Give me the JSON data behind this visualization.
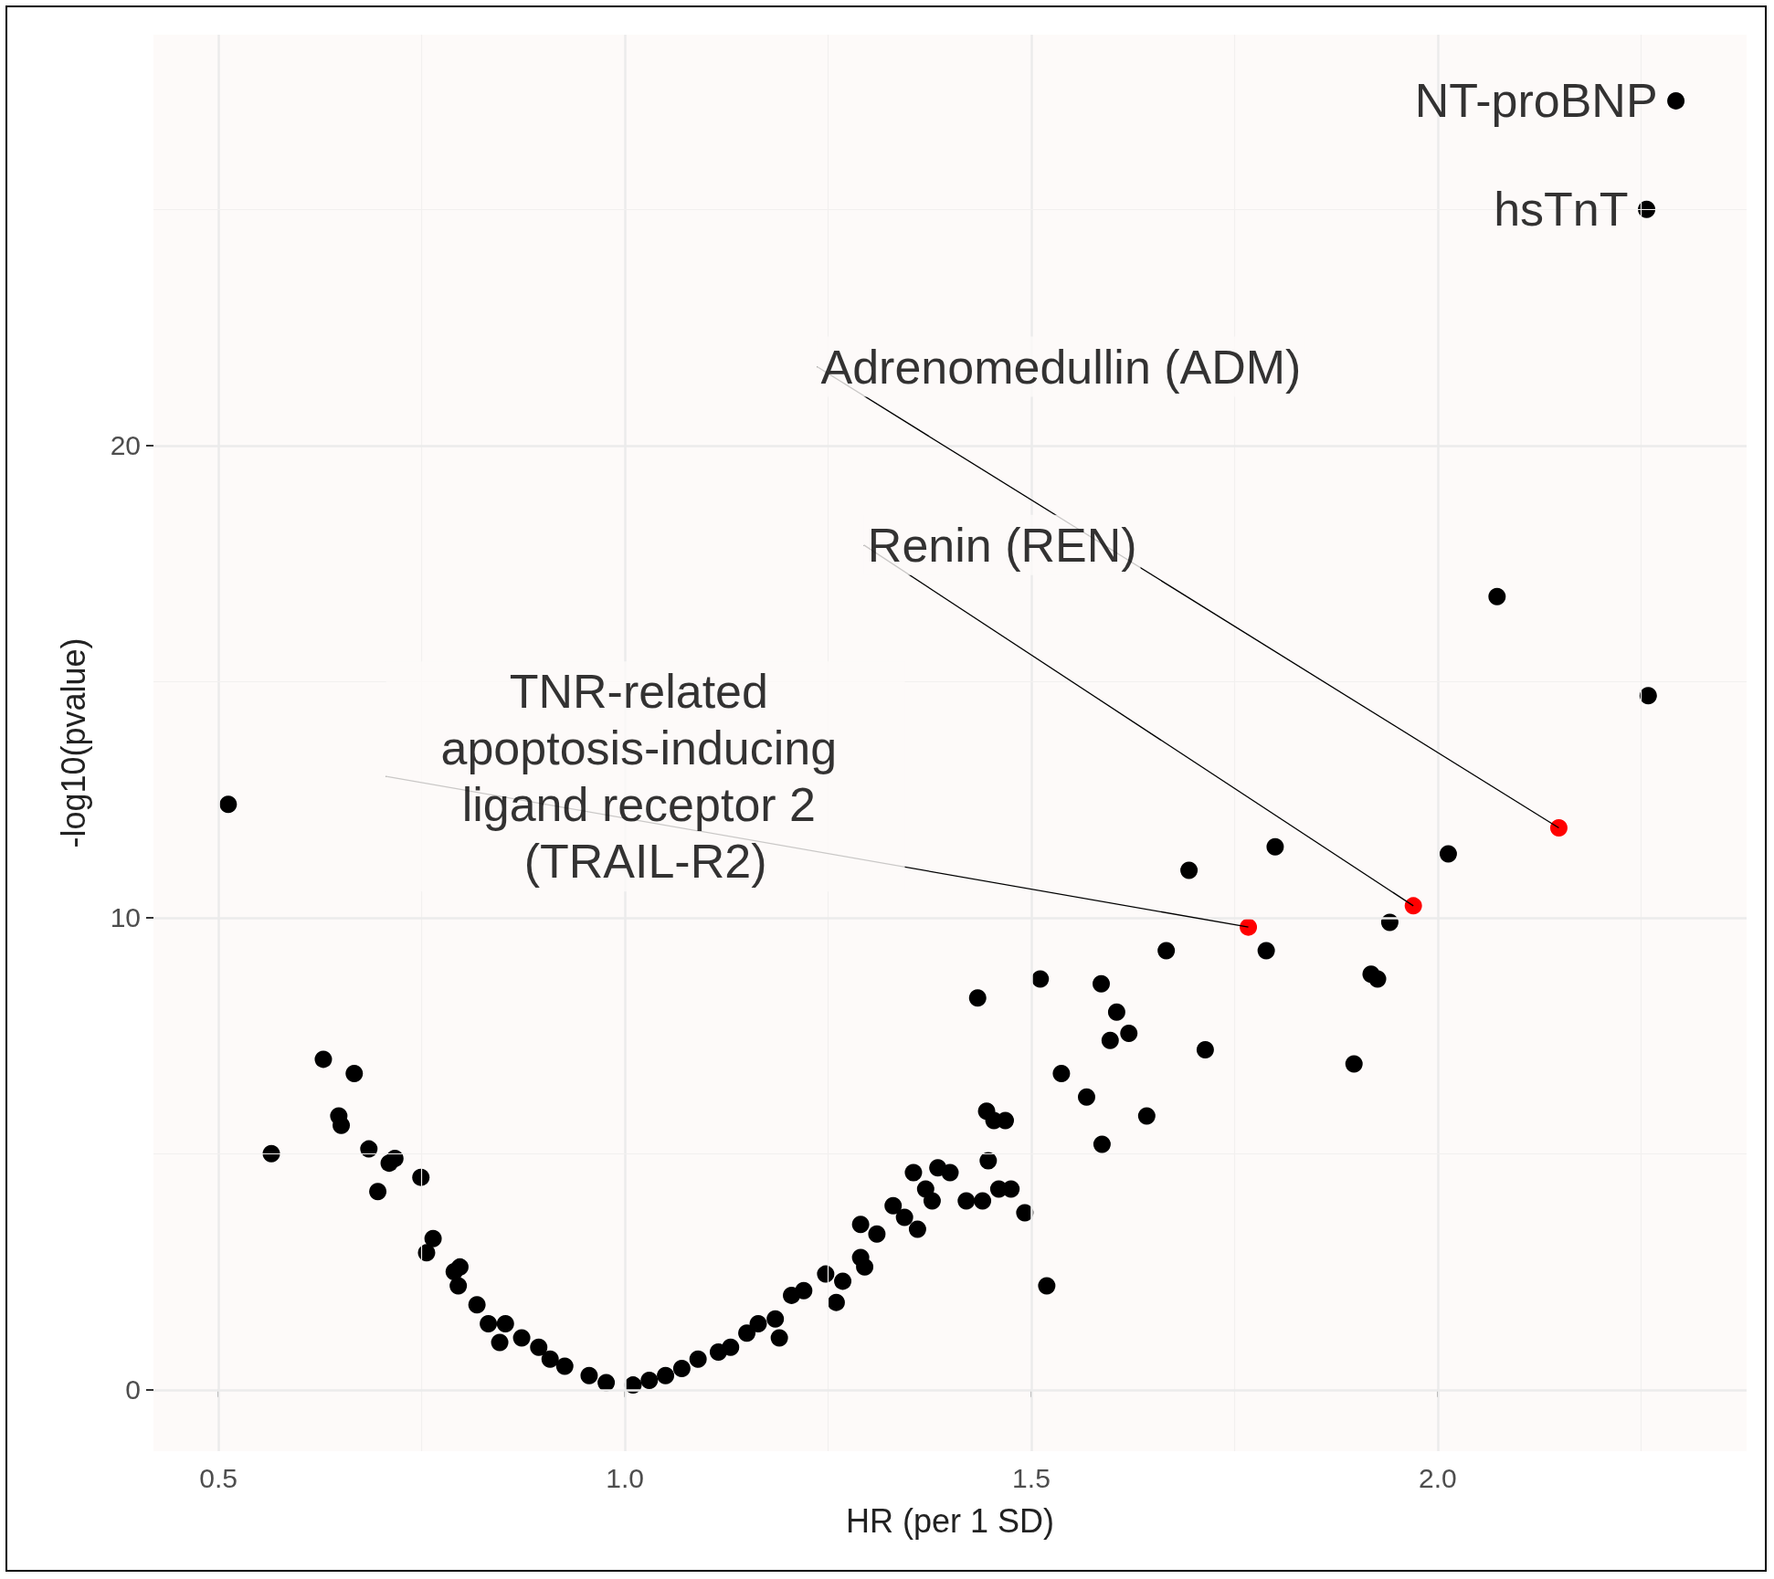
{
  "chart_data": {
    "type": "scatter",
    "xlabel": "HR (per 1 SD)",
    "ylabel": "-log10(pvalue)",
    "xlim": [
      0.42,
      2.38
    ],
    "ylim": [
      -1.3,
      28.7
    ],
    "xticks": [
      {
        "value": 0.5,
        "label": "0.5"
      },
      {
        "value": 1,
        "label": "1.0"
      },
      {
        "value": 1.5,
        "label": "1.5"
      },
      {
        "value": 2,
        "label": "2.0"
      }
    ],
    "yticks": [
      0,
      10,
      20
    ],
    "grid": true,
    "marker": "circle",
    "series": [
      {
        "color": "#000000",
        "x": [
          0.512,
          0.565,
          0.629,
          0.667,
          0.648,
          0.651,
          0.685,
          0.696,
          0.71,
          0.717,
          0.749,
          0.756,
          0.764,
          0.79,
          0.797,
          0.795,
          0.818,
          0.832,
          0.853,
          0.846,
          0.873,
          0.894,
          0.908,
          0.926,
          0.956,
          0.977,
          1.01,
          1.03,
          1.05,
          1.07,
          1.09,
          1.115,
          1.13,
          1.15,
          1.164,
          1.185,
          1.19,
          1.205,
          1.22,
          1.247,
          1.26,
          1.268,
          1.29,
          1.295,
          1.29,
          1.31,
          1.33,
          1.344,
          1.36,
          1.355,
          1.37,
          1.385,
          1.378,
          1.4,
          1.42,
          1.434,
          1.44,
          1.447,
          1.445,
          1.454,
          1.468,
          1.46,
          1.475,
          1.492,
          1.511,
          1.519,
          1.537,
          1.568,
          1.586,
          1.587,
          1.597,
          1.605,
          1.62,
          1.642,
          1.666,
          1.694,
          1.714,
          1.789,
          1.8,
          1.897,
          1.918,
          1.926,
          1.941,
          2.013,
          2.073,
          2.259,
          2.257,
          2.293
        ],
        "values": [
          12.4,
          5.0,
          7.0,
          6.7,
          5.8,
          5.6,
          5.1,
          4.2,
          4.8,
          4.9,
          4.5,
          2.9,
          3.2,
          2.5,
          2.6,
          2.2,
          1.8,
          1.4,
          1.4,
          1.0,
          1.1,
          0.9,
          0.65,
          0.5,
          0.3,
          0.15,
          0.1,
          0.2,
          0.3,
          0.45,
          0.65,
          0.8,
          0.9,
          1.2,
          1.4,
          1.5,
          1.1,
          2.0,
          2.1,
          2.45,
          1.85,
          2.3,
          2.8,
          2.6,
          3.5,
          3.3,
          3.9,
          3.65,
          3.4,
          4.6,
          4.25,
          4.7,
          4.0,
          4.6,
          4.0,
          8.3,
          4.0,
          4.85,
          5.9,
          5.7,
          5.7,
          4.25,
          4.25,
          3.75,
          8.7,
          2.2,
          6.7,
          6.2,
          8.6,
          5.2,
          7.4,
          8.0,
          7.55,
          5.8,
          9.3,
          11.0,
          7.2,
          9.3,
          11.5,
          6.9,
          8.8,
          8.7,
          9.9,
          11.35,
          16.8,
          14.7,
          25.0,
          27.3
        ]
      },
      {
        "color": "#ff0000",
        "x": [
          1.767,
          1.97,
          2.149
        ],
        "values": [
          9.8,
          10.25,
          11.9
        ]
      }
    ],
    "annotations": [
      {
        "text": "NT-proBNP",
        "x": 2.293,
        "y": 27.3
      },
      {
        "text": "hsTnT",
        "x": 2.257,
        "y": 25.0
      },
      {
        "text": "Adrenomedullin (ADM)",
        "x": 2.149,
        "y": 11.9
      },
      {
        "text": "Renin (REN)",
        "x": 1.97,
        "y": 10.25
      },
      {
        "text": "TNR-related apoptosis-inducing ligand receptor 2 (TRAIL-R2)",
        "x": 1.767,
        "y": 9.8
      }
    ]
  }
}
